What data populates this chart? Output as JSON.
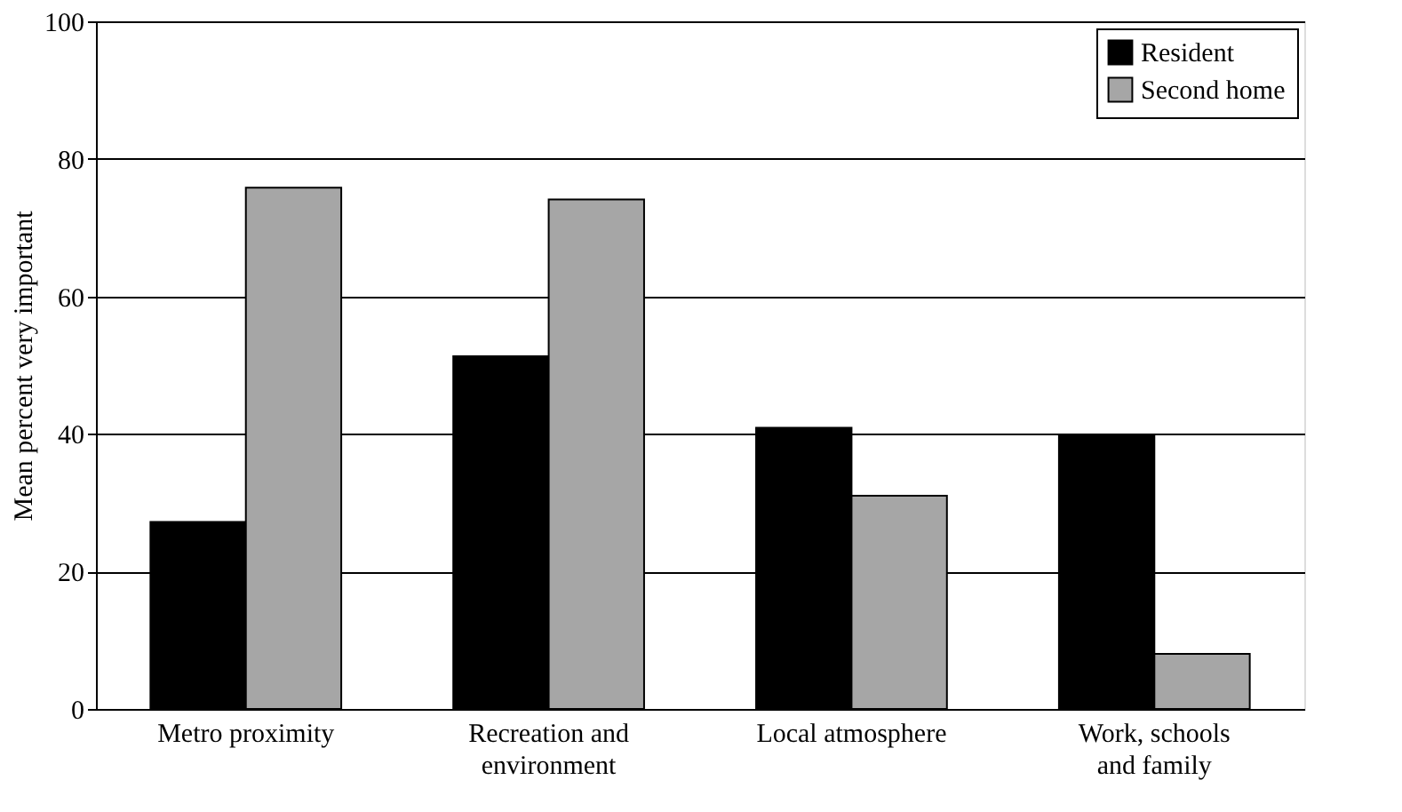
{
  "chart_data": {
    "type": "bar",
    "ylabel": "Mean percent very important",
    "categories": [
      "Metro proximity",
      "Recreation and environment",
      "Local atmosphere",
      "Work, schools and family"
    ],
    "series": [
      {
        "name": "Resident",
        "color": "#000000",
        "values": [
          27.2,
          51.3,
          40.9,
          39.8
        ]
      },
      {
        "name": "Second home",
        "color": "#a6a6a6",
        "values": [
          75.8,
          74.1,
          31.0,
          8.0
        ]
      }
    ],
    "ylim": [
      0,
      100
    ],
    "yticks": [
      0,
      20,
      40,
      60,
      80,
      100
    ],
    "grid": "y",
    "legend": "top right"
  }
}
